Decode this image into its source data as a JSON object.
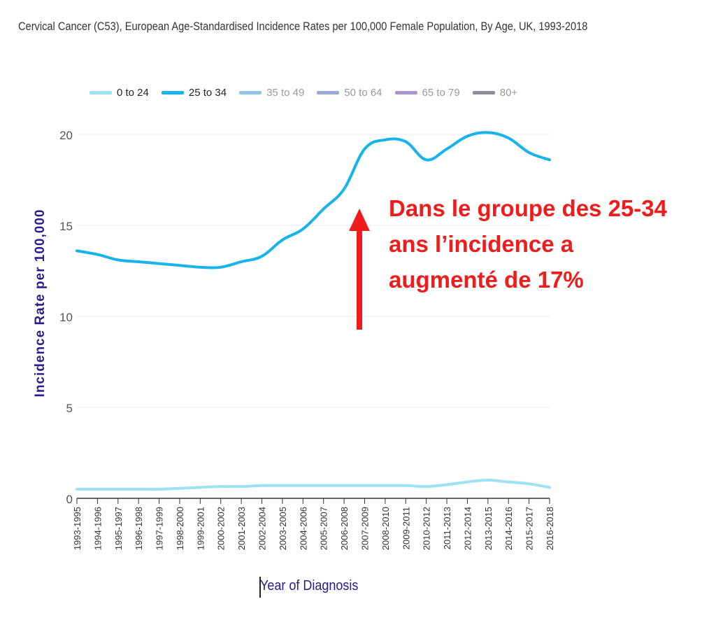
{
  "title": "Cervical Cancer (C53), European Age-Standardised Incidence Rates per 100,000 Female Population, By Age, UK, 1993-2018",
  "annotation": {
    "lines": [
      "Dans le groupe des 25-34",
      "ans l’incidence a",
      "augmenté de 17%"
    ],
    "color": "#f01c1c"
  },
  "legend": [
    {
      "label": "0 to 24",
      "color": "#9ee0f4",
      "active": true
    },
    {
      "label": "25 to 34",
      "color": "#16b4ea",
      "active": true
    },
    {
      "label": "35 to 49",
      "color": "#8ec5e8",
      "active": false
    },
    {
      "label": "50 to 64",
      "color": "#9aa8d8",
      "active": false
    },
    {
      "label": "65 to 79",
      "color": "#ad93d6",
      "active": false
    },
    {
      "label": "80+",
      "color": "#8a8ea0",
      "active": false
    }
  ],
  "chart_data": {
    "type": "line",
    "title": "Cervical Cancer (C53), European Age-Standardised Incidence Rates per 100,000 Female Population, By Age, UK, 1993-2018",
    "xlabel": "Year of Diagnosis",
    "ylabel": "Incidence Rate per 100,000",
    "ylim": [
      0,
      20
    ],
    "yticks": [
      0,
      5,
      10,
      15,
      20
    ],
    "grid": true,
    "legend_position": "top",
    "categories": [
      "1993-1995",
      "1994-1996",
      "1995-1997",
      "1996-1998",
      "1997-1999",
      "1998-2000",
      "1999-2001",
      "2000-2002",
      "2001-2003",
      "2002-2004",
      "2003-2005",
      "2004-2006",
      "2005-2007",
      "2006-2008",
      "2007-2009",
      "2008-2010",
      "2009-2011",
      "2010-2012",
      "2011-2013",
      "2012-2014",
      "2013-2015",
      "2014-2016",
      "2015-2017",
      "2016-2018"
    ],
    "series": [
      {
        "name": "0 to 24",
        "color": "#9ee0f4",
        "values": [
          0.5,
          0.5,
          0.5,
          0.5,
          0.5,
          0.55,
          0.6,
          0.65,
          0.65,
          0.7,
          0.7,
          0.7,
          0.7,
          0.7,
          0.7,
          0.7,
          0.7,
          0.65,
          0.75,
          0.9,
          1.0,
          0.9,
          0.8,
          0.6
        ]
      },
      {
        "name": "25 to 34",
        "color": "#16b4ea",
        "values": [
          13.6,
          13.4,
          13.1,
          13.0,
          12.9,
          12.8,
          12.7,
          12.7,
          13.0,
          13.3,
          14.2,
          14.8,
          15.9,
          17.0,
          19.2,
          19.7,
          19.6,
          18.6,
          19.2,
          19.9,
          20.1,
          19.8,
          19.0,
          18.6
        ]
      }
    ]
  }
}
